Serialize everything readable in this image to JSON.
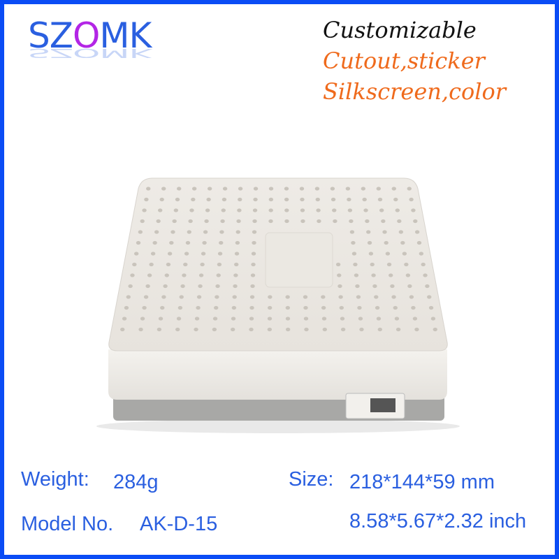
{
  "brand": {
    "logo_prefix": "SZ",
    "logo_o": "O",
    "logo_suffix": "MK",
    "colors": {
      "main": "#2a5fe0",
      "accent": "#b325e6"
    }
  },
  "tagline": {
    "line1": "Customizable",
    "line2": "Cutout,sticker",
    "line3": "Silkscreen,color"
  },
  "specs": {
    "weight_label": "Weight:",
    "weight_value": "284g",
    "size_label": "Size:",
    "size_mm": "218*144*59 mm",
    "size_inch": "8.58*5.67*2.32 inch",
    "model_label": "Model No.",
    "model_value": "AK-D-15"
  },
  "border_color": "#0a4cf5"
}
